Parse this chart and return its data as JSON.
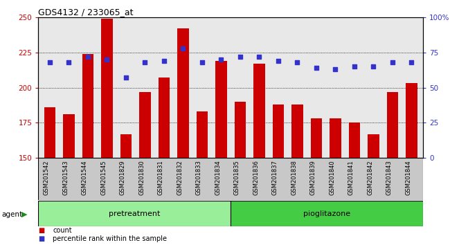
{
  "title": "GDS4132 / 233065_at",
  "samples": [
    "GSM201542",
    "GSM201543",
    "GSM201544",
    "GSM201545",
    "GSM201829",
    "GSM201830",
    "GSM201831",
    "GSM201832",
    "GSM201833",
    "GSM201834",
    "GSM201835",
    "GSM201836",
    "GSM201837",
    "GSM201838",
    "GSM201839",
    "GSM201840",
    "GSM201841",
    "GSM201842",
    "GSM201843",
    "GSM201844"
  ],
  "bar_values": [
    186,
    181,
    224,
    249,
    167,
    197,
    207,
    242,
    183,
    219,
    190,
    217,
    188,
    188,
    178,
    178,
    175,
    167,
    197,
    203
  ],
  "pct_values": [
    68,
    68,
    72,
    70,
    57,
    68,
    69,
    78,
    68,
    70,
    72,
    72,
    69,
    68,
    64,
    63,
    65,
    65,
    68,
    68
  ],
  "bar_color": "#cc0000",
  "dot_color": "#3333cc",
  "pretreatment_color": "#99ee99",
  "pioglitazone_color": "#44cc44",
  "background_color": "#ffffff",
  "plot_bg_color": "#e8e8e8",
  "ylim_left": [
    150,
    250
  ],
  "ylim_right": [
    0,
    100
  ],
  "yticks_left": [
    150,
    175,
    200,
    225,
    250
  ],
  "yticks_right": [
    0,
    25,
    50,
    75,
    100
  ],
  "grid_lines": [
    175,
    200,
    225
  ],
  "n_pretreatment": 10,
  "n_pioglitazone": 10,
  "bar_width": 0.6
}
